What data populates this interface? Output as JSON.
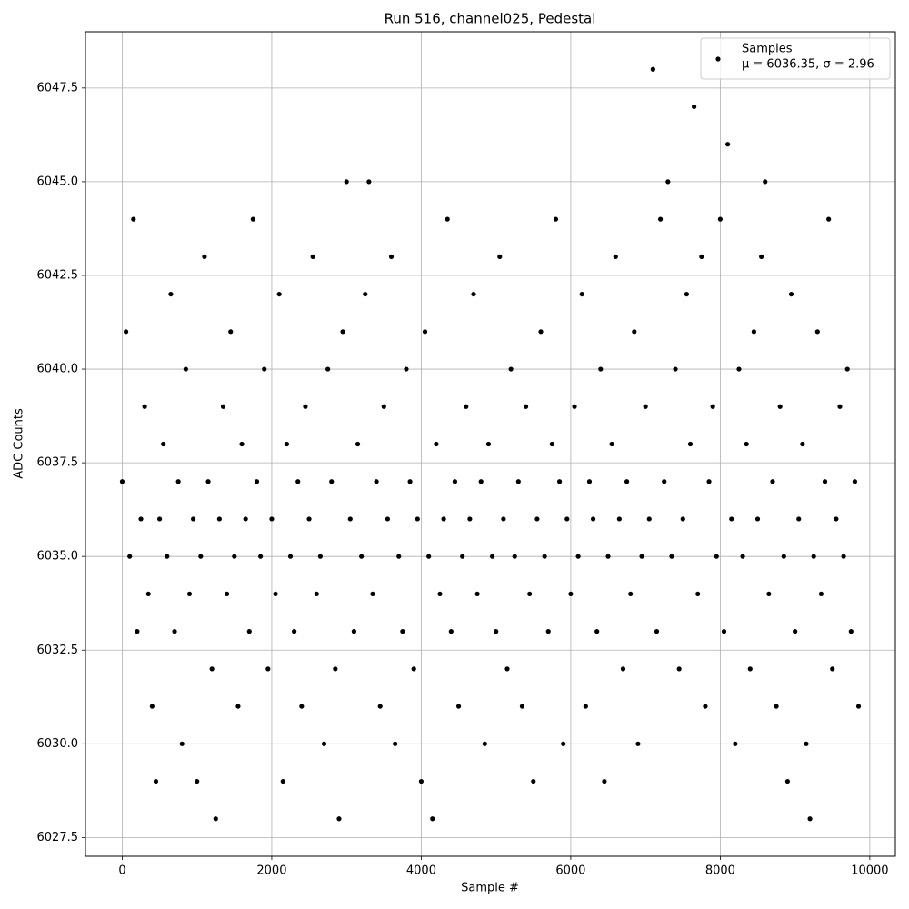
{
  "chart_data": {
    "type": "scatter",
    "title": "Run 516, channel025, Pedestal",
    "x_label": "Sample #",
    "y_label": "ADC Counts",
    "legend_title": "μ = 6036.35, σ = 2.96",
    "legend": "upper right",
    "grid": true,
    "xlim": [
      -492,
      10342
    ],
    "ylim": [
      6027,
      6049
    ],
    "xticks": [
      0,
      2000,
      4000,
      6000,
      8000,
      10000
    ],
    "yticks": [
      {
        "value": 6027.5,
        "label": "6027.5"
      },
      {
        "value": 6030,
        "label": "6030.0"
      },
      {
        "value": 6032.5,
        "label": "6032.5"
      },
      {
        "value": 6035,
        "label": "6035.0"
      },
      {
        "value": 6037.5,
        "label": "6037.5"
      },
      {
        "value": 6040,
        "label": "6040.0"
      },
      {
        "value": 6042.5,
        "label": "6042.5"
      },
      {
        "value": 6045,
        "label": "6045.0"
      },
      {
        "value": 6047.5,
        "label": "6047.5"
      }
    ],
    "series": [
      {
        "name": "Samples",
        "color": "#000000",
        "x": [
          0,
          50,
          100,
          150,
          200,
          250,
          300,
          350,
          400,
          450,
          500,
          550,
          600,
          650,
          700,
          750,
          800,
          850,
          900,
          950,
          1000,
          1050,
          1100,
          1150,
          1200,
          1250,
          1300,
          1350,
          1400,
          1450,
          1500,
          1550,
          1600,
          1650,
          1700,
          1750,
          1800,
          1850,
          1900,
          1950,
          2000,
          2050,
          2100,
          2150,
          2200,
          2250,
          2300,
          2350,
          2400,
          2450,
          2500,
          2550,
          2600,
          2650,
          2700,
          2750,
          2800,
          2850,
          2900,
          2950,
          3000,
          3050,
          3100,
          3150,
          3200,
          3250,
          3300,
          3350,
          3400,
          3450,
          3500,
          3550,
          3600,
          3650,
          3700,
          3750,
          3800,
          3850,
          3900,
          3950,
          4000,
          4050,
          4100,
          4150,
          4200,
          4250,
          4300,
          4350,
          4400,
          4450,
          4500,
          4550,
          4600,
          4650,
          4700,
          4750,
          4800,
          4850,
          4900,
          4950,
          5000,
          5050,
          5100,
          5150,
          5200,
          5250,
          5300,
          5350,
          5400,
          5450,
          5500,
          5550,
          5600,
          5650,
          5700,
          5750,
          5800,
          5850,
          5900,
          5950,
          6000,
          6050,
          6100,
          6150,
          6200,
          6250,
          6300,
          6350,
          6400,
          6450,
          6500,
          6550,
          6600,
          6650,
          6700,
          6750,
          6800,
          6850,
          6900,
          6950,
          7000,
          7050,
          7100,
          7150,
          7200,
          7250,
          7300,
          7350,
          7400,
          7450,
          7500,
          7550,
          7600,
          7650,
          7700,
          7750,
          7800,
          7850,
          7900,
          7950,
          8000,
          8050,
          8100,
          8150,
          8200,
          8250,
          8300,
          8350,
          8400,
          8450,
          8500,
          8550,
          8600,
          8650,
          8700,
          8750,
          8800,
          8850,
          8900,
          8950,
          9000,
          9050,
          9100,
          9150,
          9200,
          9250,
          9300,
          9350,
          9400,
          9450,
          9500,
          9550,
          9600,
          9650,
          9700,
          9750,
          9800,
          9850
        ],
        "values": [
          6037,
          6041,
          6035,
          6044,
          6033,
          6036,
          6039,
          6034,
          6031,
          6029,
          6036,
          6038,
          6035,
          6042,
          6033,
          6037,
          6030,
          6040,
          6034,
          6036,
          6029,
          6035,
          6043,
          6037,
          6032,
          6028,
          6036,
          6039,
          6034,
          6041,
          6035,
          6031,
          6038,
          6036,
          6033,
          6044,
          6037,
          6035,
          6040,
          6032,
          6036,
          6034,
          6042,
          6029,
          6038,
          6035,
          6033,
          6037,
          6031,
          6039,
          6036,
          6043,
          6034,
          6035,
          6030,
          6040,
          6037,
          6032,
          6028,
          6041,
          6045,
          6036,
          6033,
          6038,
          6035,
          6042,
          6045,
          6034,
          6037,
          6031,
          6039,
          6036,
          6043,
          6030,
          6035,
          6033,
          6040,
          6037,
          6032,
          6036,
          6029,
          6041,
          6035,
          6028,
          6038,
          6034,
          6036,
          6044,
          6033,
          6037,
          6031,
          6035,
          6039,
          6036,
          6042,
          6034,
          6037,
          6030,
          6038,
          6035,
          6033,
          6043,
          6036,
          6032,
          6040,
          6035,
          6037,
          6031,
          6039,
          6034,
          6029,
          6036,
          6041,
          6035,
          6033,
          6038,
          6044,
          6037,
          6030,
          6036,
          6034,
          6039,
          6035,
          6042,
          6031,
          6037,
          6036,
          6033,
          6040,
          6029,
          6035,
          6038,
          6043,
          6036,
          6032,
          6037,
          6034,
          6041,
          6030,
          6035,
          6039,
          6036,
          6048,
          6033,
          6044,
          6037,
          6045,
          6035,
          6040,
          6032,
          6036,
          6042,
          6038,
          6047,
          6034,
          6043,
          6031,
          6037,
          6039,
          6035,
          6044,
          6033,
          6046,
          6036,
          6030,
          6040,
          6035,
          6038,
          6032,
          6041,
          6036,
          6043,
          6045,
          6034,
          6037,
          6031,
          6039,
          6035,
          6029,
          6042,
          6033,
          6036,
          6038,
          6030,
          6028,
          6035,
          6041,
          6034,
          6037,
          6044,
          6032,
          6036,
          6039,
          6035,
          6040,
          6033,
          6037,
          6031
        ]
      }
    ]
  }
}
